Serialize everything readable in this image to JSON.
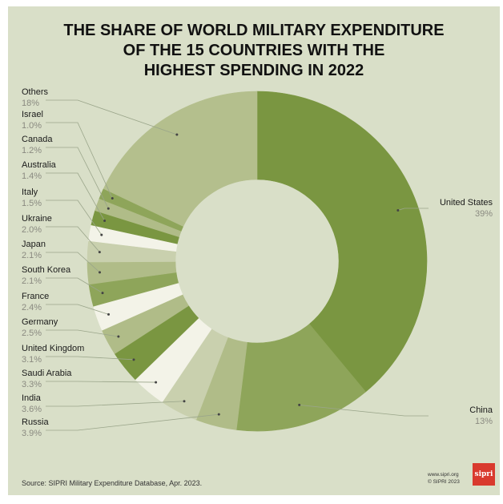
{
  "title": {
    "line1": "THE SHARE OF WORLD MILITARY EXPENDITURE",
    "line2": "OF THE 15 COUNTRIES WITH THE",
    "line3": "HIGHEST SPENDING IN 2022"
  },
  "footer": {
    "source": "Source: SIPRI Military Expenditure Database, Apr. 2023.",
    "site": "www.sipri.org",
    "copyright": "© SIPRI 2023",
    "logo": "sipri"
  },
  "colors": {
    "background": "#d9dfc8",
    "dark": "#7a9641",
    "medium": "#8ea55a",
    "light": "#b0bc88",
    "pale": "#f3f3e8",
    "lightbeige": "#c9d0ae",
    "others": "#b4bf8d"
  },
  "chart_data": {
    "type": "pie",
    "donut": true,
    "title": "THE SHARE OF WORLD MILITARY EXPENDITURE OF THE 15 COUNTRIES WITH THE HIGHEST SPENDING IN 2022",
    "unit": "%",
    "slices": [
      {
        "label": "United States",
        "value": 39,
        "display": "39%",
        "color": "#7a9641"
      },
      {
        "label": "China",
        "value": 13,
        "display": "13%",
        "color": "#8ea55a"
      },
      {
        "label": "Russia",
        "value": 3.9,
        "display": "3.9%",
        "color": "#b0bc88"
      },
      {
        "label": "India",
        "value": 3.6,
        "display": "3.6%",
        "color": "#c9d0ae"
      },
      {
        "label": "Saudi Arabia",
        "value": 3.3,
        "display": "3.3%",
        "color": "#f3f3e8"
      },
      {
        "label": "United Kingdom",
        "value": 3.1,
        "display": "3.1%",
        "color": "#7a9641"
      },
      {
        "label": "Germany",
        "value": 2.5,
        "display": "2.5%",
        "color": "#b0bc88"
      },
      {
        "label": "France",
        "value": 2.4,
        "display": "2.4%",
        "color": "#f3f3e8"
      },
      {
        "label": "South Korea",
        "value": 2.1,
        "display": "2.1%",
        "color": "#8ea55a"
      },
      {
        "label": "Japan",
        "value": 2.1,
        "display": "2.1%",
        "color": "#b0bc88"
      },
      {
        "label": "Ukraine",
        "value": 2.0,
        "display": "2.0%",
        "color": "#c9d0ae"
      },
      {
        "label": "Italy",
        "value": 1.5,
        "display": "1.5%",
        "color": "#f3f3e8"
      },
      {
        "label": "Australia",
        "value": 1.4,
        "display": "1.4%",
        "color": "#7a9641"
      },
      {
        "label": "Canada",
        "value": 1.2,
        "display": "1.2%",
        "color": "#b0bc88"
      },
      {
        "label": "Israel",
        "value": 1.0,
        "display": "1.0%",
        "color": "#8ea55a"
      },
      {
        "label": "Others",
        "value": 18,
        "display": "18%",
        "color": "#b4bf8d"
      }
    ]
  }
}
